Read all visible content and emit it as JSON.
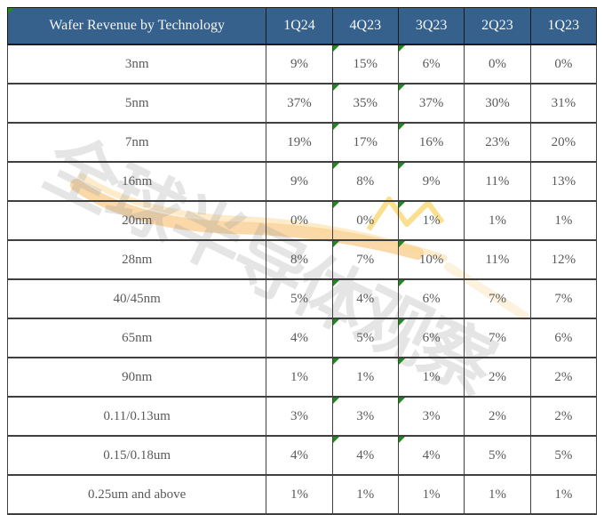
{
  "colors": {
    "header_bg": "#35618C",
    "header_text": "#F5F5F5",
    "cell_text": "#5A5A5A",
    "grid_line": "#3F3F3F",
    "outer_border": "#1A1A1A",
    "flag_green": "#1F8A1F",
    "watermark_gray": "#9C9C9C",
    "watermark_orange": "#F5A93B"
  },
  "watermark": {
    "text": "全球半导体观察"
  },
  "table": {
    "header": {
      "label": "Wafer Revenue by Technology",
      "columns": [
        "1Q24",
        "4Q23",
        "3Q23",
        "2Q23",
        "1Q23"
      ],
      "has_corner_flag": true
    },
    "rows": [
      {
        "label": "3nm",
        "values": [
          "9%",
          "15%",
          "6%",
          "0%",
          "0%"
        ],
        "markers": [
          1,
          2
        ]
      },
      {
        "label": "5nm",
        "values": [
          "37%",
          "35%",
          "37%",
          "30%",
          "31%"
        ],
        "markers": [
          1,
          2
        ]
      },
      {
        "label": "7nm",
        "values": [
          "19%",
          "17%",
          "16%",
          "23%",
          "20%"
        ],
        "markers": [
          1,
          2
        ]
      },
      {
        "label": "16nm",
        "values": [
          "9%",
          "8%",
          "9%",
          "11%",
          "13%"
        ],
        "markers": [
          1,
          2
        ]
      },
      {
        "label": "20nm",
        "values": [
          "0%",
          "0%",
          "1%",
          "1%",
          "1%"
        ],
        "markers": [
          1,
          2
        ]
      },
      {
        "label": "28nm",
        "values": [
          "8%",
          "7%",
          "10%",
          "11%",
          "12%"
        ],
        "markers": [
          1,
          2
        ]
      },
      {
        "label": "40/45nm",
        "values": [
          "5%",
          "4%",
          "6%",
          "7%",
          "7%"
        ],
        "markers": [
          1,
          2
        ]
      },
      {
        "label": "65nm",
        "values": [
          "4%",
          "5%",
          "6%",
          "7%",
          "6%"
        ],
        "markers": [
          1,
          2
        ]
      },
      {
        "label": "90nm",
        "values": [
          "1%",
          "1%",
          "1%",
          "2%",
          "2%"
        ],
        "markers": [
          1,
          2
        ]
      },
      {
        "label": "0.11/0.13um",
        "values": [
          "3%",
          "3%",
          "3%",
          "2%",
          "2%"
        ],
        "markers": [
          1,
          2
        ]
      },
      {
        "label": "0.15/0.18um",
        "values": [
          "4%",
          "4%",
          "4%",
          "5%",
          "5%"
        ],
        "markers": [
          1,
          2
        ]
      },
      {
        "label": "0.25um and above",
        "values": [
          "1%",
          "1%",
          "1%",
          "1%",
          "1%"
        ],
        "markers": []
      }
    ]
  },
  "chart_data": {
    "type": "table",
    "title": "Wafer Revenue by Technology",
    "categories": [
      "3nm",
      "5nm",
      "7nm",
      "16nm",
      "20nm",
      "28nm",
      "40/45nm",
      "65nm",
      "90nm",
      "0.11/0.13um",
      "0.15/0.18um",
      "0.25um and above"
    ],
    "unit": "percent of wafer revenue",
    "series": [
      {
        "name": "1Q24",
        "values": [
          9,
          37,
          19,
          9,
          0,
          8,
          5,
          4,
          1,
          3,
          4,
          1
        ]
      },
      {
        "name": "4Q23",
        "values": [
          15,
          35,
          17,
          8,
          0,
          7,
          4,
          5,
          1,
          3,
          4,
          1
        ]
      },
      {
        "name": "3Q23",
        "values": [
          6,
          37,
          16,
          9,
          1,
          10,
          6,
          6,
          1,
          3,
          4,
          1
        ]
      },
      {
        "name": "2Q23",
        "values": [
          0,
          30,
          23,
          11,
          1,
          11,
          7,
          7,
          2,
          2,
          5,
          1
        ]
      },
      {
        "name": "1Q23",
        "values": [
          0,
          31,
          20,
          13,
          1,
          12,
          7,
          6,
          2,
          2,
          5,
          1
        ]
      }
    ]
  }
}
